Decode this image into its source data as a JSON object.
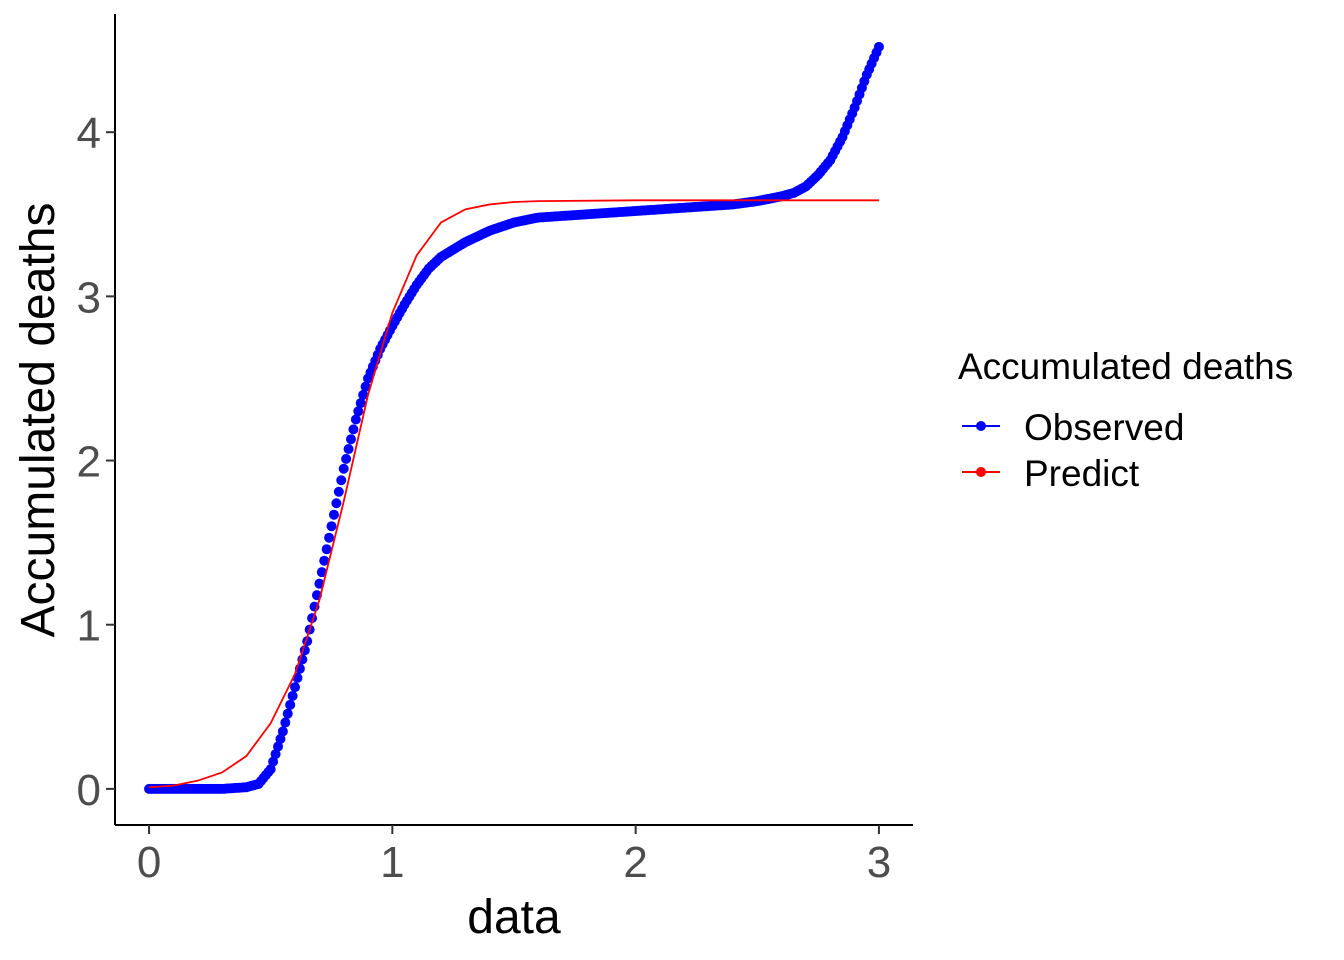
{
  "chart_data": {
    "type": "line",
    "xlabel": "data",
    "ylabel": "Accumulated deaths",
    "xlim": [
      -0.14,
      3.14
    ],
    "ylim": [
      -0.22,
      4.72
    ],
    "xticks": [
      0,
      1,
      2,
      3
    ],
    "yticks": [
      0,
      1,
      2,
      3,
      4
    ],
    "grid": false,
    "legend": {
      "title": "Accumulated deaths",
      "position": "right"
    },
    "series": [
      {
        "name": "Observed",
        "color": "#0000ff",
        "style": "points",
        "x_range": [
          0,
          3
        ],
        "points": [
          [
            0,
            0
          ],
          [
            0.1,
            0.0
          ],
          [
            0.2,
            0.0
          ],
          [
            0.3,
            0.0
          ],
          [
            0.4,
            0.01
          ],
          [
            0.45,
            0.03
          ],
          [
            0.5,
            0.12
          ],
          [
            0.55,
            0.35
          ],
          [
            0.6,
            0.62
          ],
          [
            0.65,
            0.9
          ],
          [
            0.7,
            1.25
          ],
          [
            0.75,
            1.6
          ],
          [
            0.8,
            1.95
          ],
          [
            0.85,
            2.25
          ],
          [
            0.9,
            2.5
          ],
          [
            0.95,
            2.68
          ],
          [
            1.0,
            2.82
          ],
          [
            1.05,
            2.95
          ],
          [
            1.1,
            3.07
          ],
          [
            1.15,
            3.17
          ],
          [
            1.2,
            3.24
          ],
          [
            1.3,
            3.33
          ],
          [
            1.4,
            3.4
          ],
          [
            1.5,
            3.45
          ],
          [
            1.6,
            3.48
          ],
          [
            1.8,
            3.5
          ],
          [
            2.0,
            3.52
          ],
          [
            2.2,
            3.54
          ],
          [
            2.4,
            3.56
          ],
          [
            2.5,
            3.58
          ],
          [
            2.6,
            3.61
          ],
          [
            2.65,
            3.63
          ],
          [
            2.7,
            3.67
          ],
          [
            2.75,
            3.74
          ],
          [
            2.8,
            3.83
          ],
          [
            2.85,
            3.97
          ],
          [
            2.9,
            4.15
          ],
          [
            2.95,
            4.35
          ],
          [
            3.0,
            4.52
          ]
        ]
      },
      {
        "name": "Predict",
        "color": "#ff0000",
        "style": "line",
        "points": [
          [
            0,
            0.01
          ],
          [
            0.1,
            0.02
          ],
          [
            0.2,
            0.05
          ],
          [
            0.3,
            0.1
          ],
          [
            0.4,
            0.2
          ],
          [
            0.5,
            0.4
          ],
          [
            0.6,
            0.7
          ],
          [
            0.7,
            1.15
          ],
          [
            0.8,
            1.75
          ],
          [
            0.9,
            2.4
          ],
          [
            1.0,
            2.9
          ],
          [
            1.1,
            3.25
          ],
          [
            1.2,
            3.45
          ],
          [
            1.3,
            3.53
          ],
          [
            1.4,
            3.56
          ],
          [
            1.5,
            3.575
          ],
          [
            1.6,
            3.58
          ],
          [
            2.0,
            3.585
          ],
          [
            2.5,
            3.585
          ],
          [
            3.0,
            3.585
          ]
        ]
      }
    ]
  }
}
